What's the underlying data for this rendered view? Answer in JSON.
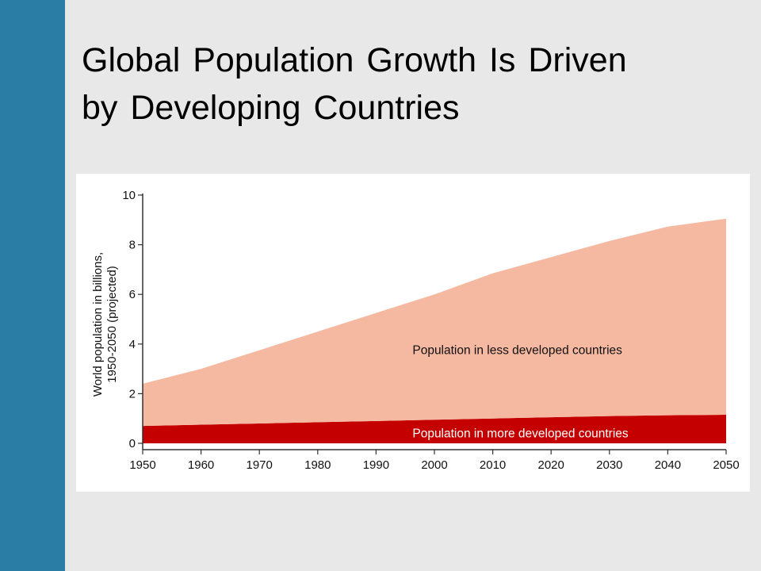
{
  "slide": {
    "title_line1": "Global Population Growth Is Driven",
    "title_line2": "by Developing Countries",
    "accent_color": "#2a7ea6"
  },
  "chart_data": {
    "type": "area",
    "stacked": true,
    "title": "",
    "xlabel": "",
    "ylabel_line1": "World population in billions,",
    "ylabel_line2": "1950-2050 (projected)",
    "x": [
      1950,
      1960,
      1970,
      1980,
      1990,
      2000,
      2010,
      2020,
      2030,
      2040,
      2050
    ],
    "xticks": [
      1950,
      1960,
      1970,
      1980,
      1990,
      2000,
      2010,
      2020,
      2030,
      2040,
      2050
    ],
    "yticks": [
      0,
      2,
      4,
      6,
      8,
      10
    ],
    "xlim": [
      1950,
      2050
    ],
    "ylim": [
      0,
      10
    ],
    "grid": false,
    "series": [
      {
        "name": "Population in more developed countries",
        "color": "#c40000",
        "label_color": "#ffffff",
        "values": [
          0.7,
          0.75,
          0.8,
          0.85,
          0.9,
          0.95,
          1.0,
          1.05,
          1.1,
          1.13,
          1.15
        ]
      },
      {
        "name": "Population in less developed countries",
        "color": "#f5b8a0",
        "label_color": "#111111",
        "values": [
          1.7,
          2.25,
          2.95,
          3.65,
          4.35,
          5.05,
          5.85,
          6.45,
          7.05,
          7.6,
          7.9
        ]
      }
    ]
  }
}
